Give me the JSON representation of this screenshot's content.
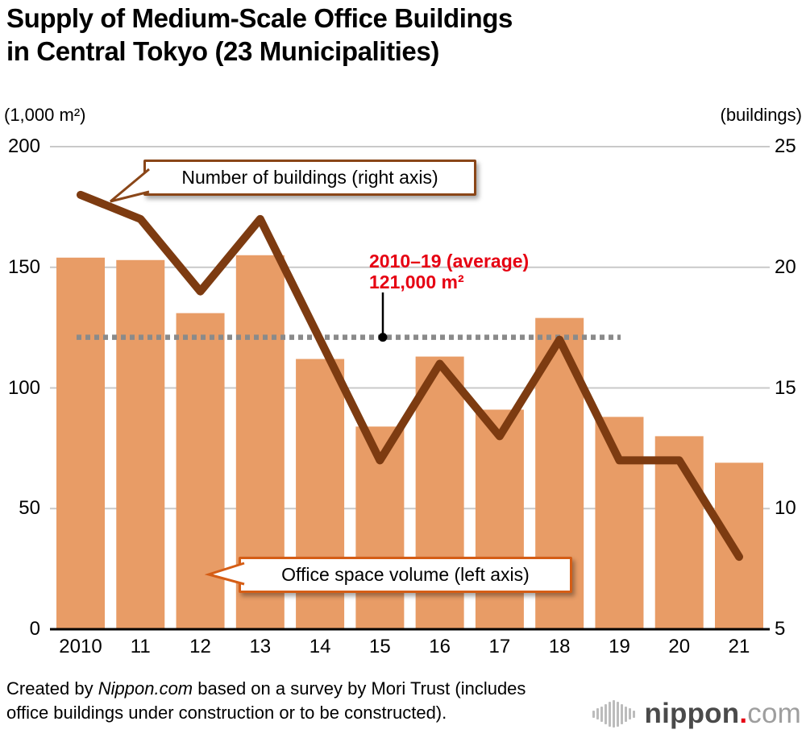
{
  "title": "Supply of Medium-Scale Office Buildings\nin Central Tokyo (23 Municipalities)",
  "left_axis_unit": "(1,000 m²)",
  "right_axis_unit": "(buildings)",
  "annotations": {
    "line_callout": "Number of buildings (right axis)",
    "bar_callout": "Office space volume (left axis)",
    "average_label_line1": "2010–19 (average)",
    "average_label_line2": "121,000 m²"
  },
  "footer": {
    "credit_prefix": "Created by ",
    "credit_source": "Nippon.com",
    "credit_suffix": " based on a survey by Mori Trust (includes\noffice buildings under construction or to be constructed).",
    "logo_icon": "soundwave-icon",
    "logo_text_main": "nippon",
    "logo_text_dot": ".",
    "logo_text_tld": "com"
  },
  "colors": {
    "bar": "#e89c66",
    "line": "#7d3b11",
    "grid": "#c9c9c9",
    "axis": "#000000",
    "average_dotted": "#8a8a8a",
    "annotation_red": "#e60012",
    "line_callout_border": "#8a4618",
    "bar_callout_border": "#d55d15",
    "logo_red": "#e60012"
  },
  "chart_data": {
    "type": "bar+line",
    "categories": [
      "2010",
      "11",
      "12",
      "13",
      "14",
      "15",
      "16",
      "17",
      "18",
      "19",
      "20",
      "21"
    ],
    "series": [
      {
        "name": "Office space volume (left axis)",
        "type": "bar",
        "axis": "left",
        "values": [
          154,
          153,
          131,
          155,
          112,
          84,
          113,
          91,
          129,
          88,
          80,
          69
        ]
      },
      {
        "name": "Number of buildings (right axis)",
        "type": "line",
        "axis": "right",
        "values": [
          23,
          22,
          19,
          22,
          17,
          12,
          16,
          13,
          17,
          12,
          12,
          8
        ]
      }
    ],
    "left_axis": {
      "label": "(1,000 m²)",
      "min": 0,
      "max": 200,
      "ticks": [
        0,
        50,
        100,
        150,
        200
      ]
    },
    "right_axis": {
      "label": "(buildings)",
      "min": 5,
      "max": 25,
      "ticks": [
        5,
        10,
        15,
        20,
        25
      ]
    },
    "average_line": {
      "value": 121,
      "period": "2010–19",
      "label": "121,000 m²"
    },
    "grid": true,
    "legend_position": "callouts-inside-plot"
  }
}
